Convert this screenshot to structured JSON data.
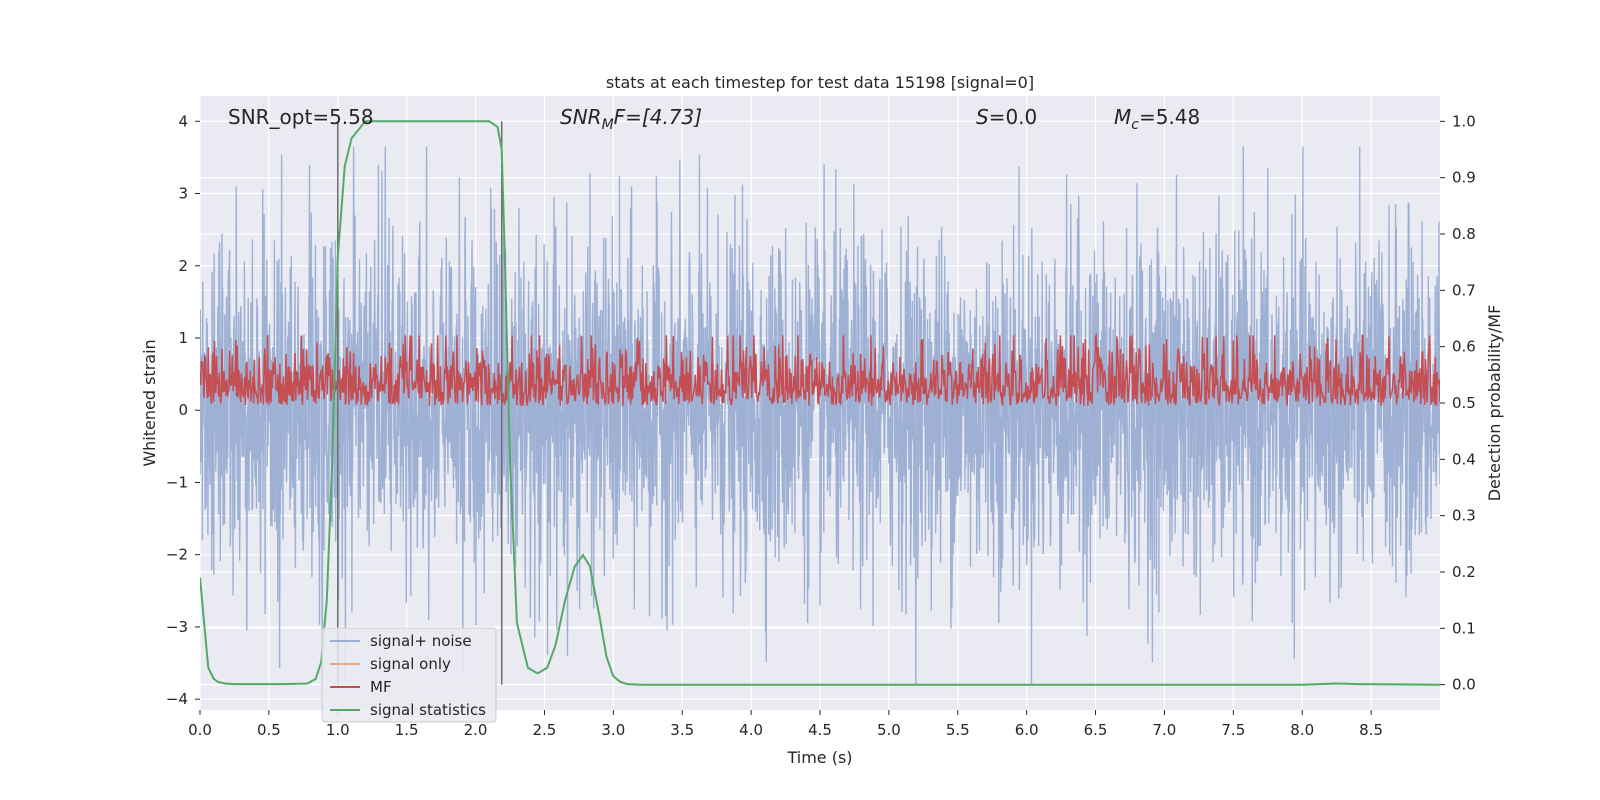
{
  "chart_data": {
    "type": "line",
    "title": "stats at each timestep for test data 15198 [signal=0]",
    "xlabel": "Time (s)",
    "ylabel": "Whitened strain",
    "y2label": "Detection probability/MF",
    "xlim": [
      0,
      9.0
    ],
    "ylim": [
      -4.15,
      4.35
    ],
    "y2lim": [
      -0.045,
      1.045
    ],
    "x_ticks": [
      0.0,
      0.5,
      1.0,
      1.5,
      2.0,
      2.5,
      3.0,
      3.5,
      4.0,
      4.5,
      5.0,
      5.5,
      6.0,
      6.5,
      7.0,
      7.5,
      8.0,
      8.5
    ],
    "x_tick_labels": [
      "0.0",
      "0.5",
      "1.0",
      "1.5",
      "2.0",
      "2.5",
      "3.0",
      "3.5",
      "4.0",
      "4.5",
      "5.0",
      "5.5",
      "6.0",
      "6.5",
      "7.0",
      "7.5",
      "8.0",
      "8.5"
    ],
    "y_ticks": [
      4,
      3,
      2,
      1,
      0,
      -1,
      -2,
      -3,
      -4
    ],
    "y_tick_labels": [
      "4",
      "3",
      "2",
      "1",
      "0",
      "−1",
      "−2",
      "−3",
      "−4"
    ],
    "y2_ticks": [
      1.0,
      0.9,
      0.8,
      0.7,
      0.6,
      0.5,
      0.4,
      0.3,
      0.2,
      0.1,
      0.0
    ],
    "y2_tick_labels": [
      "1.0",
      "0.9",
      "0.8",
      "0.7",
      "0.6",
      "0.5",
      "0.4",
      "0.3",
      "0.2",
      "0.1",
      "0.0"
    ],
    "grid": true,
    "legend_position": "lower-left",
    "annotations": {
      "snr_opt": "SNR_opt=5.58",
      "snr_mf_main": "SNR",
      "snr_mf_sub": "M",
      "snr_mf_rest": "F=[4.73]",
      "s_main": "S",
      "s_rest": "=0.0",
      "mc_main": "M",
      "mc_sub": "c",
      "mc_rest": "=5.48"
    },
    "vertical_lines_x": [
      1.0,
      2.19
    ],
    "series": [
      {
        "name": "signal+ noise",
        "color": "#9aaed3",
        "axis": "left",
        "noise_band": {
          "x_start": 0.0,
          "x_end": 9.0,
          "typical_range": [
            -2.3,
            2.4
          ],
          "extreme_max": 3.65,
          "extreme_min": -3.8
        }
      },
      {
        "name": "signal only",
        "color": "#e8a88c",
        "axis": "left",
        "x": [],
        "y": []
      },
      {
        "name": "MF",
        "color": "#c44e52",
        "axis": "right",
        "noise_band": {
          "x_start": 0.0,
          "x_end": 9.0,
          "typical_range": [
            0.495,
            0.59
          ],
          "extreme_max": 0.62
        }
      },
      {
        "name": "signal statistics",
        "color": "#55a868",
        "axis": "right",
        "x": [
          0.0,
          0.03,
          0.06,
          0.1,
          0.13,
          0.18,
          0.25,
          0.4,
          0.6,
          0.78,
          0.84,
          0.88,
          0.92,
          0.96,
          1.0,
          1.05,
          1.1,
          1.2,
          1.5,
          2.0,
          2.1,
          2.16,
          2.19,
          2.21,
          2.25,
          2.3,
          2.38,
          2.45,
          2.52,
          2.58,
          2.65,
          2.72,
          2.78,
          2.83,
          2.9,
          2.95,
          3.0,
          3.05,
          3.1,
          3.2,
          4.0,
          6.0,
          8.0,
          8.25,
          8.4,
          9.0
        ],
        "y": [
          0.19,
          0.11,
          0.03,
          0.01,
          0.005,
          0.002,
          0.001,
          0.001,
          0.001,
          0.002,
          0.01,
          0.04,
          0.15,
          0.4,
          0.76,
          0.92,
          0.97,
          1.0,
          1.0,
          1.0,
          1.0,
          0.99,
          0.95,
          0.78,
          0.4,
          0.11,
          0.03,
          0.02,
          0.03,
          0.07,
          0.15,
          0.21,
          0.23,
          0.21,
          0.12,
          0.05,
          0.015,
          0.005,
          0.001,
          0.0,
          0.0,
          0.0,
          0.0,
          0.002,
          0.001,
          0.0
        ]
      }
    ]
  }
}
